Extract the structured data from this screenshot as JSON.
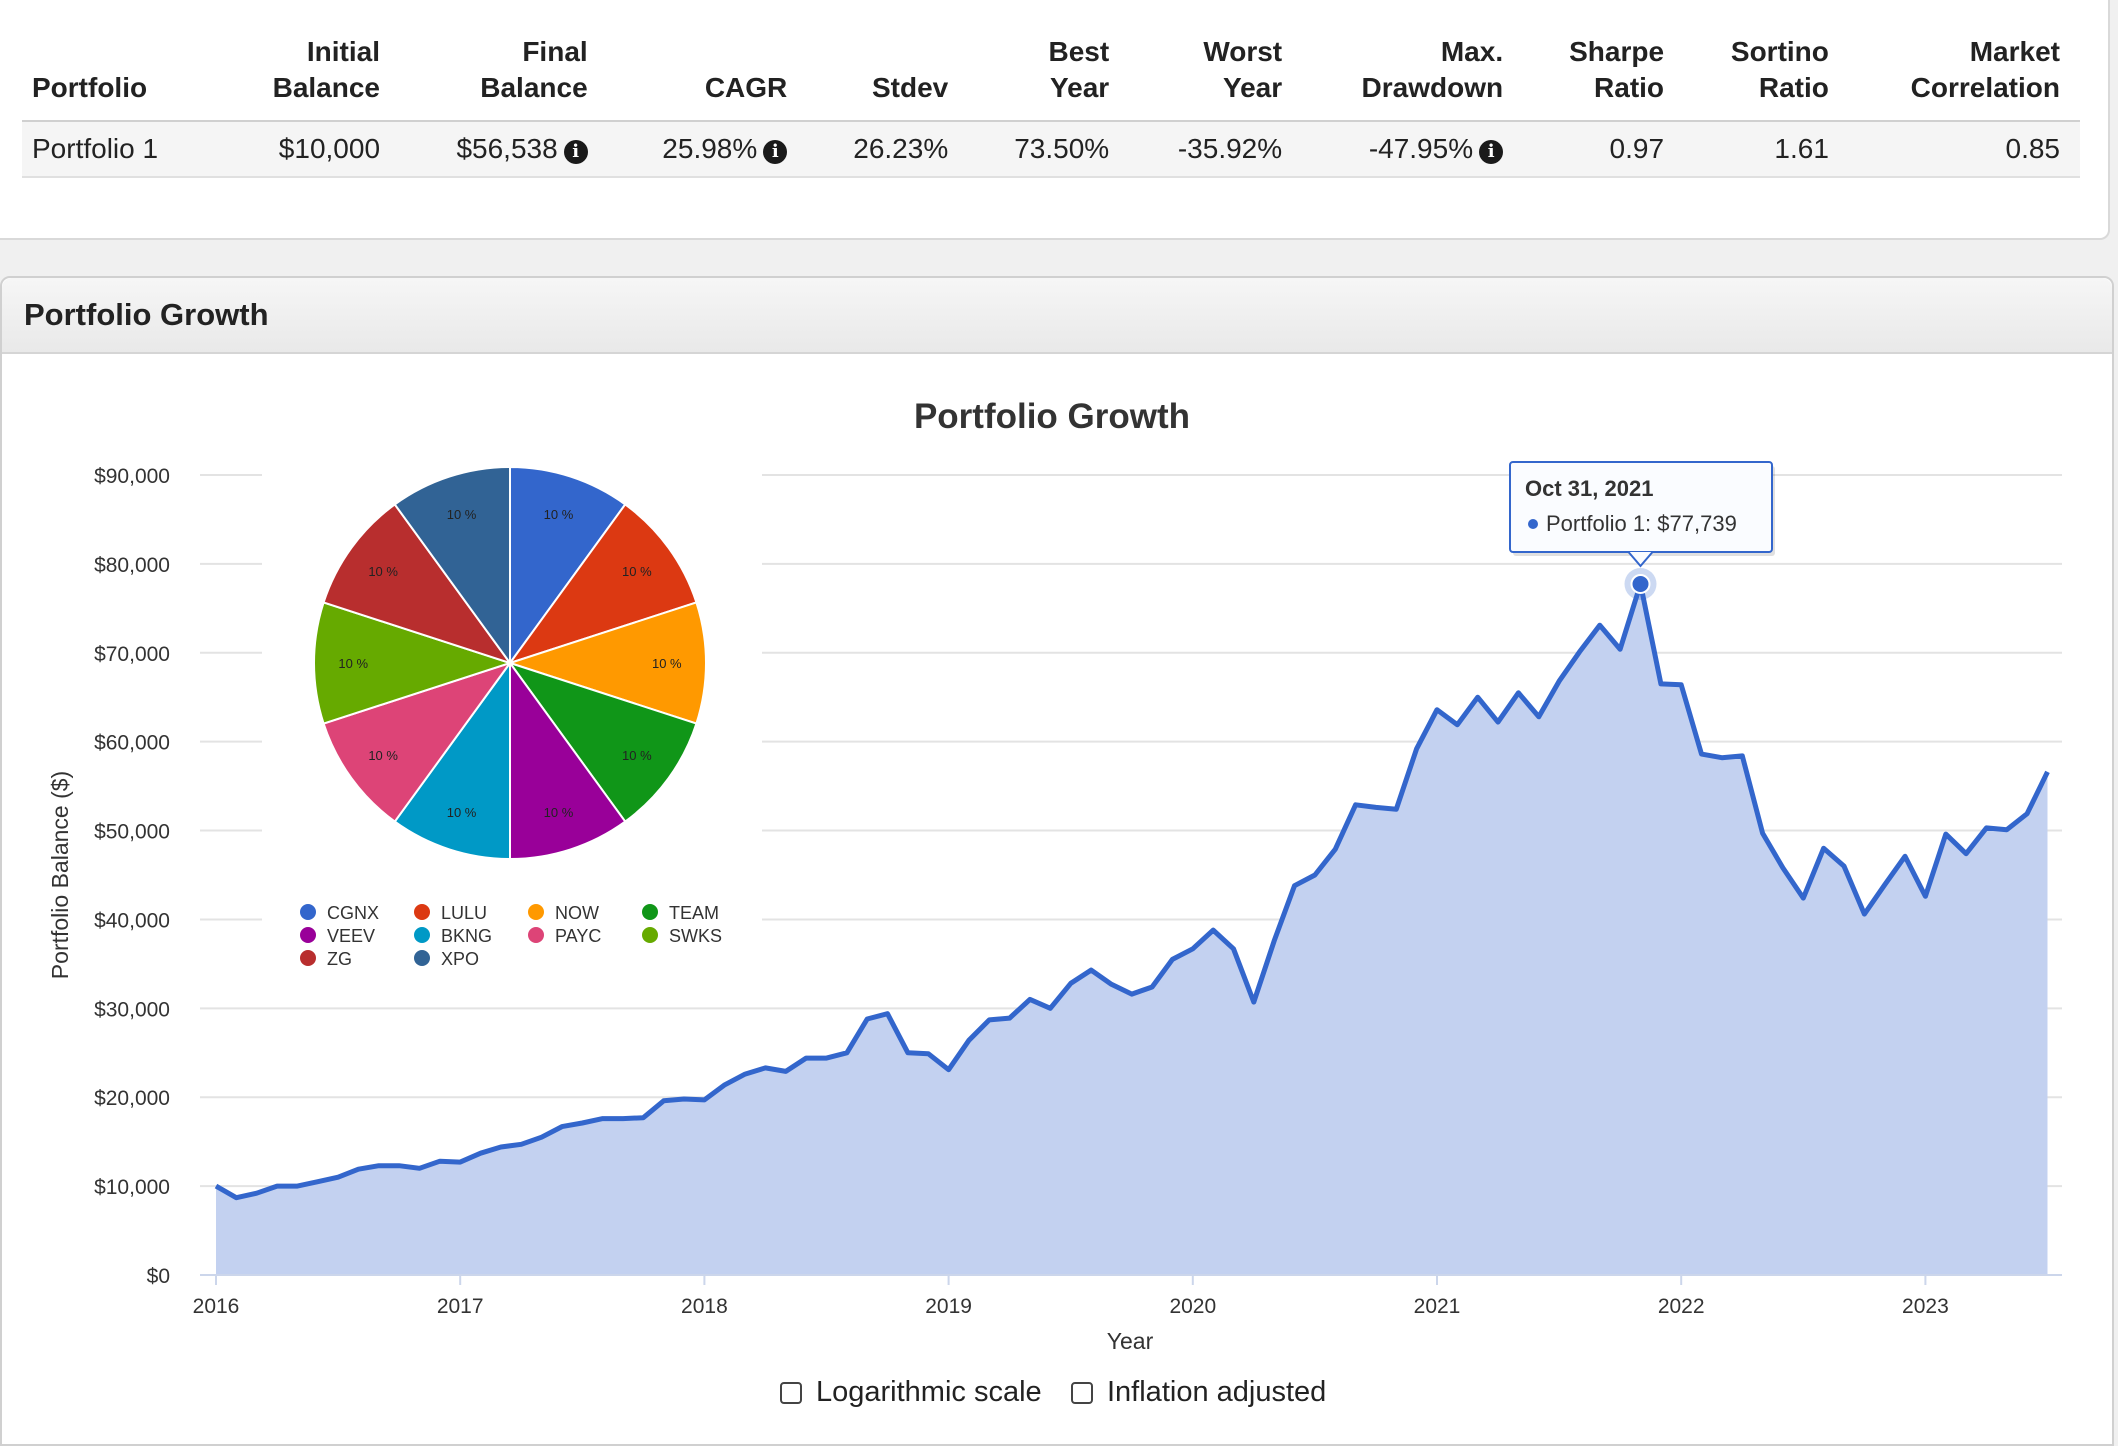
{
  "summary_table": {
    "headers": [
      [
        "Portfolio"
      ],
      [
        "Initial",
        "Balance"
      ],
      [
        "Final",
        "Balance"
      ],
      [
        "CAGR"
      ],
      [
        "Stdev"
      ],
      [
        "Best",
        "Year"
      ],
      [
        "Worst",
        "Year"
      ],
      [
        "Max.",
        "Drawdown"
      ],
      [
        "Sharpe",
        "Ratio"
      ],
      [
        "Sortino",
        "Ratio"
      ],
      [
        "Market",
        "Correlation"
      ]
    ],
    "row": {
      "portfolio": "Portfolio 1",
      "initial_balance": "$10,000",
      "final_balance": "$56,538",
      "cagr": "25.98%",
      "stdev": "26.23%",
      "best_year": "73.50%",
      "worst_year": "-35.92%",
      "max_drawdown": "-47.95%",
      "sharpe": "0.97",
      "sortino": "1.61",
      "market_correlation": "0.85"
    }
  },
  "section_title": "Portfolio Growth",
  "options": {
    "log_scale_label": "Logarithmic scale",
    "inflation_label": "Inflation adjusted"
  },
  "colors": {
    "line": "#3366cc",
    "area": "#c3d1f0"
  },
  "chart_data": [
    {
      "type": "area",
      "title": "Portfolio Growth",
      "xlabel": "Year",
      "ylabel": "Portfolio Balance ($)",
      "ylim": [
        0,
        90000
      ],
      "yticks": [
        "$0",
        "$10,000",
        "$20,000",
        "$30,000",
        "$40,000",
        "$50,000",
        "$60,000",
        "$70,000",
        "$80,000",
        "$90,000"
      ],
      "xticks": [
        "2016",
        "2017",
        "2018",
        "2019",
        "2020",
        "2021",
        "2022",
        "2023"
      ],
      "grid": true,
      "series": [
        {
          "name": "Portfolio 1",
          "values": [
            10000,
            8700,
            9200,
            10000,
            10000,
            10500,
            11000,
            11900,
            12300,
            12300,
            12000,
            12800,
            12700,
            13700,
            14400,
            14700,
            15500,
            16700,
            17100,
            17600,
            17600,
            17700,
            19600,
            19800,
            19700,
            21400,
            22600,
            23300,
            22900,
            24400,
            24400,
            25000,
            28800,
            29400,
            25000,
            24900,
            23100,
            26400,
            28700,
            28900,
            31000,
            30000,
            32800,
            34300,
            32700,
            31600,
            32400,
            35500,
            36700,
            38800,
            36700,
            30700,
            37600,
            43800,
            45000,
            47900,
            52900,
            52600,
            52400,
            59200,
            63600,
            61900,
            65000,
            62200,
            65500,
            62800,
            66800,
            70100,
            73100,
            70400,
            77739,
            66500,
            66400,
            58600,
            58200,
            58400,
            49700,
            45800,
            42400,
            48000,
            46000,
            40600,
            43900,
            47100,
            42600,
            49600,
            47400,
            50300,
            50100,
            51900,
            56600
          ]
        }
      ],
      "tooltip": {
        "date": "Oct 31, 2021",
        "label": "Portfolio 1: $77,739",
        "index": 70
      }
    },
    {
      "type": "pie",
      "slices": [
        {
          "name": "CGNX",
          "value": 10,
          "label": "10 %",
          "color": "#3366cc"
        },
        {
          "name": "LULU",
          "value": 10,
          "label": "10 %",
          "color": "#dc3912"
        },
        {
          "name": "NOW",
          "value": 10,
          "label": "10 %",
          "color": "#ff9900"
        },
        {
          "name": "TEAM",
          "value": 10,
          "label": "10 %",
          "color": "#109618"
        },
        {
          "name": "VEEV",
          "value": 10,
          "label": "10 %",
          "color": "#990099"
        },
        {
          "name": "BKNG",
          "value": 10,
          "label": "10 %",
          "color": "#0099c6"
        },
        {
          "name": "PAYC",
          "value": 10,
          "label": "10 %",
          "color": "#dd4477"
        },
        {
          "name": "SWKS",
          "value": 10,
          "label": "10 %",
          "color": "#66aa00"
        },
        {
          "name": "ZG",
          "value": 10,
          "label": "10 %",
          "color": "#b82e2e"
        },
        {
          "name": "XPO",
          "value": 10,
          "label": "10 %",
          "color": "#316395"
        }
      ],
      "legend_placement": "bottom"
    }
  ]
}
